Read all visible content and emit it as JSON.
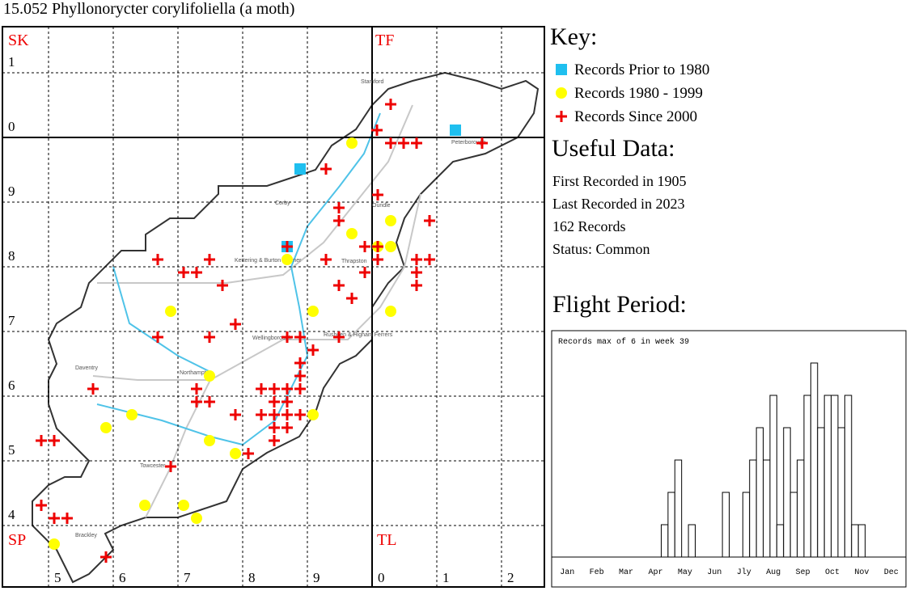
{
  "header": {
    "title": "15.052 Phyllonorycter corylifoliella (a moth)"
  },
  "map": {
    "squares": [
      "SK",
      "TF",
      "SP",
      "TL"
    ],
    "columns": [
      "5",
      "6",
      "7",
      "8",
      "9",
      "0",
      "1",
      "2"
    ],
    "rows": [
      "1",
      "0",
      "9",
      "8",
      "7",
      "6",
      "5",
      "4"
    ],
    "towns": [
      "Stamford",
      "Peterborough",
      "Corby",
      "Oundle",
      "Kettering & Burton Latimer",
      "Thrapston",
      "Wellingborough",
      "Rushden & Higham Ferrers",
      "Daventry",
      "Northampton",
      "Towcester",
      "Brackley"
    ]
  },
  "key": {
    "title": "Key:",
    "items": [
      "Records Prior to 1980",
      "Records 1980 - 1999",
      "Records Since 2000"
    ]
  },
  "useful_data": {
    "title": "Useful Data:",
    "lines": [
      "First Recorded in 1905",
      "Last Recorded in 2023",
      "162 Records",
      "Status: Common"
    ]
  },
  "chart_data": {
    "type": "bar",
    "title": "Flight Period:",
    "note": "Records max of 6 in week 39",
    "month_labels": [
      "Jan",
      "Feb",
      "Mar",
      "Apr",
      "May",
      "Jun",
      "Jly",
      "Aug",
      "Sep",
      "Oct",
      "Nov",
      "Dec"
    ],
    "values": [
      0,
      0,
      0,
      0,
      0,
      0,
      0,
      0,
      0,
      0,
      0,
      0,
      0,
      0,
      0,
      0,
      1,
      2,
      3,
      0,
      1,
      0,
      0,
      0,
      0,
      2,
      0,
      0,
      2,
      3,
      4,
      3,
      5,
      1,
      4,
      2,
      3,
      5,
      6,
      4,
      5,
      5,
      4,
      5,
      1,
      1,
      0,
      0,
      0,
      0,
      0,
      0
    ]
  }
}
